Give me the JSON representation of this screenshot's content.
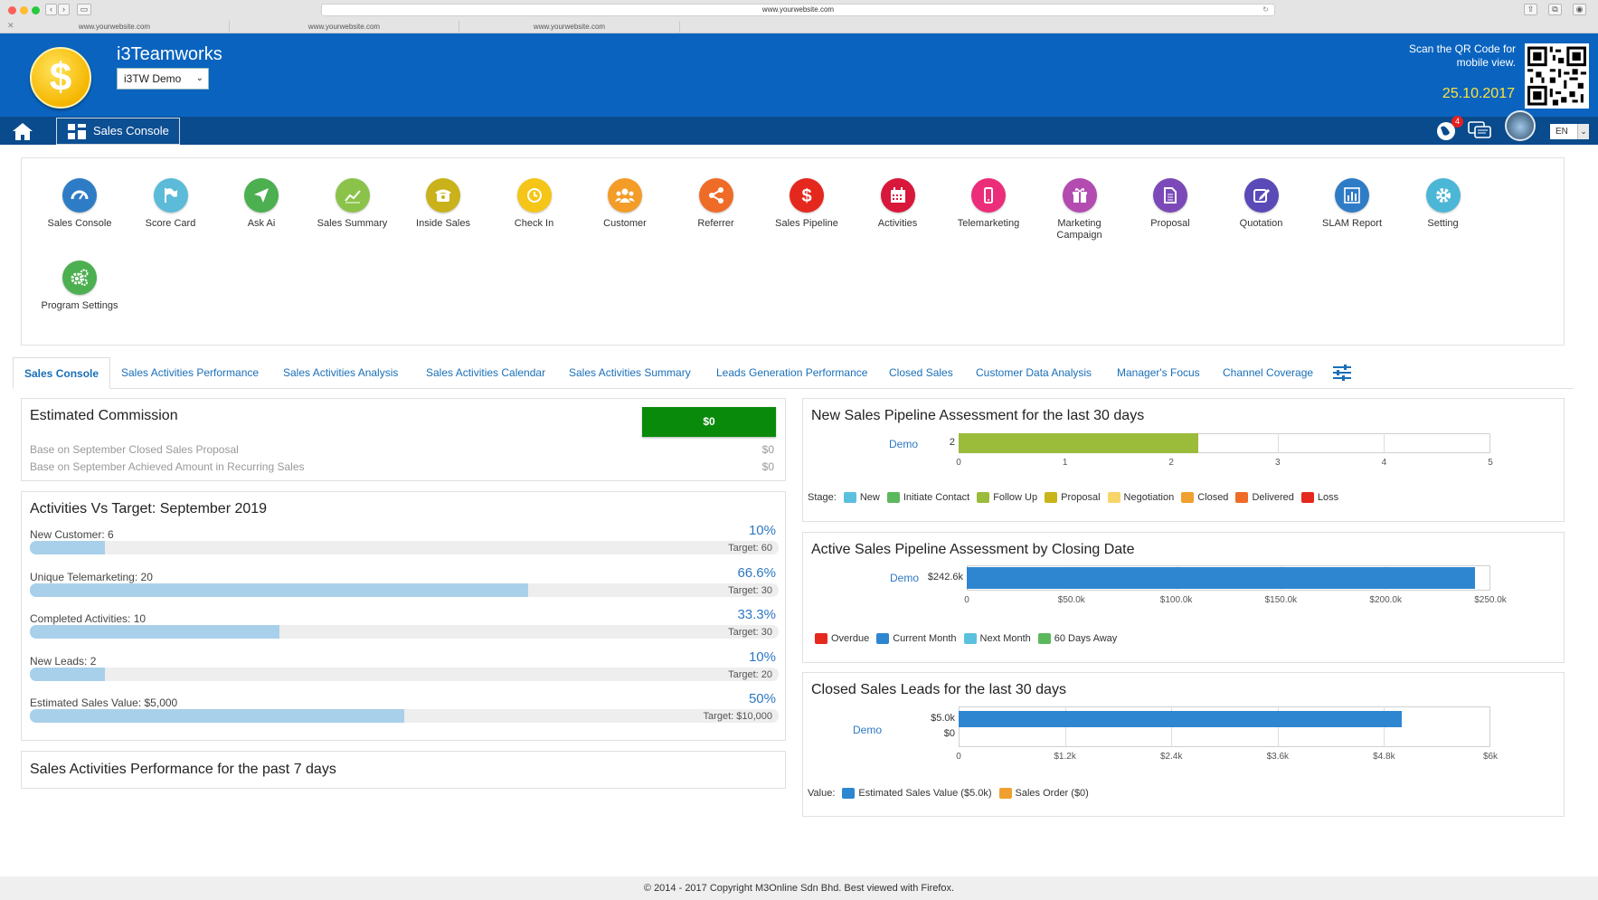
{
  "browser": {
    "url": "www.yourwebsite.com",
    "tabs": [
      "www.yourwebsite.com",
      "www.yourwebsite.com",
      "www.yourwebsite.com"
    ]
  },
  "header": {
    "brand": "i3Teamworks",
    "company_select": "i3TW Demo",
    "qr_text": "Scan the QR Code for mobile view.",
    "date": "25.10.2017",
    "logo_symbol": "$",
    "notification_count": "4",
    "language": "EN"
  },
  "subnav": {
    "home_icon": "home-icon",
    "active_module": "Sales Console"
  },
  "apps": [
    {
      "label": "Sales Console",
      "icon": "dashboard-icon",
      "color": "#2f7cc6"
    },
    {
      "label": "Score Card",
      "icon": "flag-icon",
      "color": "#5bbbd8"
    },
    {
      "label": "Ask Ai",
      "icon": "send-icon",
      "color": "#4caf50"
    },
    {
      "label": "Sales Summary",
      "icon": "line-chart-icon",
      "color": "#8bc34a"
    },
    {
      "label": "Inside Sales",
      "icon": "phone-icon",
      "color": "#c9b21a"
    },
    {
      "label": "Check In",
      "icon": "clock-icon",
      "color": "#f5c518"
    },
    {
      "label": "Customer",
      "icon": "users-icon",
      "color": "#f39c28"
    },
    {
      "label": "Referrer",
      "icon": "share-icon",
      "color": "#ef6b28"
    },
    {
      "label": "Sales Pipeline",
      "icon": "dollar-icon",
      "color": "#e5281e"
    },
    {
      "label": "Activities",
      "icon": "calendar-icon",
      "color": "#d8173b"
    },
    {
      "label": "Telemarketing",
      "icon": "mobile-icon",
      "color": "#ec2d7a"
    },
    {
      "label": "Marketing Campaign",
      "icon": "gift-icon",
      "color": "#b34bb1"
    },
    {
      "label": "Proposal",
      "icon": "document-icon",
      "color": "#7b4ab8"
    },
    {
      "label": "Quotation",
      "icon": "edit-icon",
      "color": "#5a4ab8"
    },
    {
      "label": "SLAM Report",
      "icon": "bar-chart-icon",
      "color": "#2f7cc6"
    },
    {
      "label": "Setting",
      "icon": "gear-icon",
      "color": "#4cb6d6"
    },
    {
      "label": "Program Settings",
      "icon": "gears-icon",
      "color": "#4caf50"
    }
  ],
  "tabs": [
    "Sales Console",
    "Sales Activities Performance",
    "Sales Activities Analysis",
    "Sales Activities Calendar",
    "Sales Activities Summary",
    "Leads Generation Performance",
    "Closed Sales",
    "Customer Data Analysis",
    "Manager's Focus",
    "Channel Coverage"
  ],
  "commission": {
    "title": "Estimated Commission",
    "button": "$0",
    "rows": [
      {
        "label": "Base on September Closed Sales Proposal",
        "value": "$0"
      },
      {
        "label": "Base on September Achieved Amount in Recurring Sales",
        "value": "$0"
      }
    ]
  },
  "activities": {
    "title": "Activities Vs Target: September 2019",
    "items": [
      {
        "label": "New Customer: 6",
        "percent": "10%",
        "target": "Target: 60",
        "fill": 0.1
      },
      {
        "label": "Unique Telemarketing: 20",
        "percent": "66.6%",
        "target": "Target: 30",
        "fill": 0.666
      },
      {
        "label": "Completed Activities:  10",
        "percent": "33.3%",
        "target": "Target: 30",
        "fill": 0.333
      },
      {
        "label": "New Leads:  2",
        "percent": "10%",
        "target": "Target: 20",
        "fill": 0.1
      },
      {
        "label": "Estimated Sales Value: $5,000",
        "percent": "50%",
        "target": "Target: $10,000",
        "fill": 0.5
      }
    ]
  },
  "performance": {
    "title": "Sales Activities Performance for the past 7 days"
  },
  "chart_data": [
    {
      "type": "bar",
      "title": "New Sales Pipeline Assessment for the last 30 days",
      "categories": [
        "Demo"
      ],
      "data_label": "2",
      "values": [
        2.25
      ],
      "xlim": [
        0,
        5
      ],
      "ticks": [
        "0",
        "1",
        "2",
        "3",
        "4",
        "5"
      ],
      "legend_title": "Stage:",
      "legend": [
        {
          "name": "New",
          "color": "#5bc0de"
        },
        {
          "name": "Initiate Contact",
          "color": "#5cb85c"
        },
        {
          "name": "Follow Up",
          "color": "#9bbb3b"
        },
        {
          "name": "Proposal",
          "color": "#c8b51a"
        },
        {
          "name": "Negotiation",
          "color": "#f7d56a"
        },
        {
          "name": "Closed",
          "color": "#f0a030"
        },
        {
          "name": "Delivered",
          "color": "#ef6b28"
        },
        {
          "name": "Loss",
          "color": "#e5281e"
        }
      ],
      "bar_color": "#9bbb3b"
    },
    {
      "type": "bar",
      "title": "Active Sales Pipeline Assessment by Closing Date",
      "categories": [
        "Demo"
      ],
      "data_label": "$242.6k",
      "values": [
        242.6
      ],
      "xlim": [
        0,
        250
      ],
      "ticks": [
        "0",
        "$50.0k",
        "$100.0k",
        "$150.0k",
        "$200.0k",
        "$250.0k"
      ],
      "legend_title": "",
      "legend": [
        {
          "name": "Overdue",
          "color": "#e5281e"
        },
        {
          "name": "Current Month",
          "color": "#2f86d0"
        },
        {
          "name": "Next Month",
          "color": "#5bc0de"
        },
        {
          "name": "60 Days Away",
          "color": "#5cb85c"
        }
      ],
      "bar_color": "#2f86d0"
    },
    {
      "type": "bar",
      "title": "Closed Sales Leads for the last 30 days",
      "categories": [
        "Demo"
      ],
      "data_labels": [
        "$5.0k",
        "$0"
      ],
      "series": [
        {
          "name": "Estimated Sales Value ($5.0k)",
          "values": [
            5.0
          ]
        },
        {
          "name": "Sales Order ($0)",
          "values": [
            0
          ]
        }
      ],
      "xlim": [
        0,
        6
      ],
      "ticks": [
        "0",
        "$1.2k",
        "$2.4k",
        "$3.6k",
        "$4.8k",
        "$6k"
      ],
      "legend_title": "Value:",
      "legend": [
        {
          "name": "Estimated Sales Value ($5.0k)",
          "color": "#2f86d0"
        },
        {
          "name": "Sales Order ($0)",
          "color": "#f0a030"
        }
      ],
      "bar_color": "#2f86d0"
    }
  ],
  "footer": "© 2014 - 2017 Copyright M3Online Sdn Bhd. Best viewed with Firefox."
}
